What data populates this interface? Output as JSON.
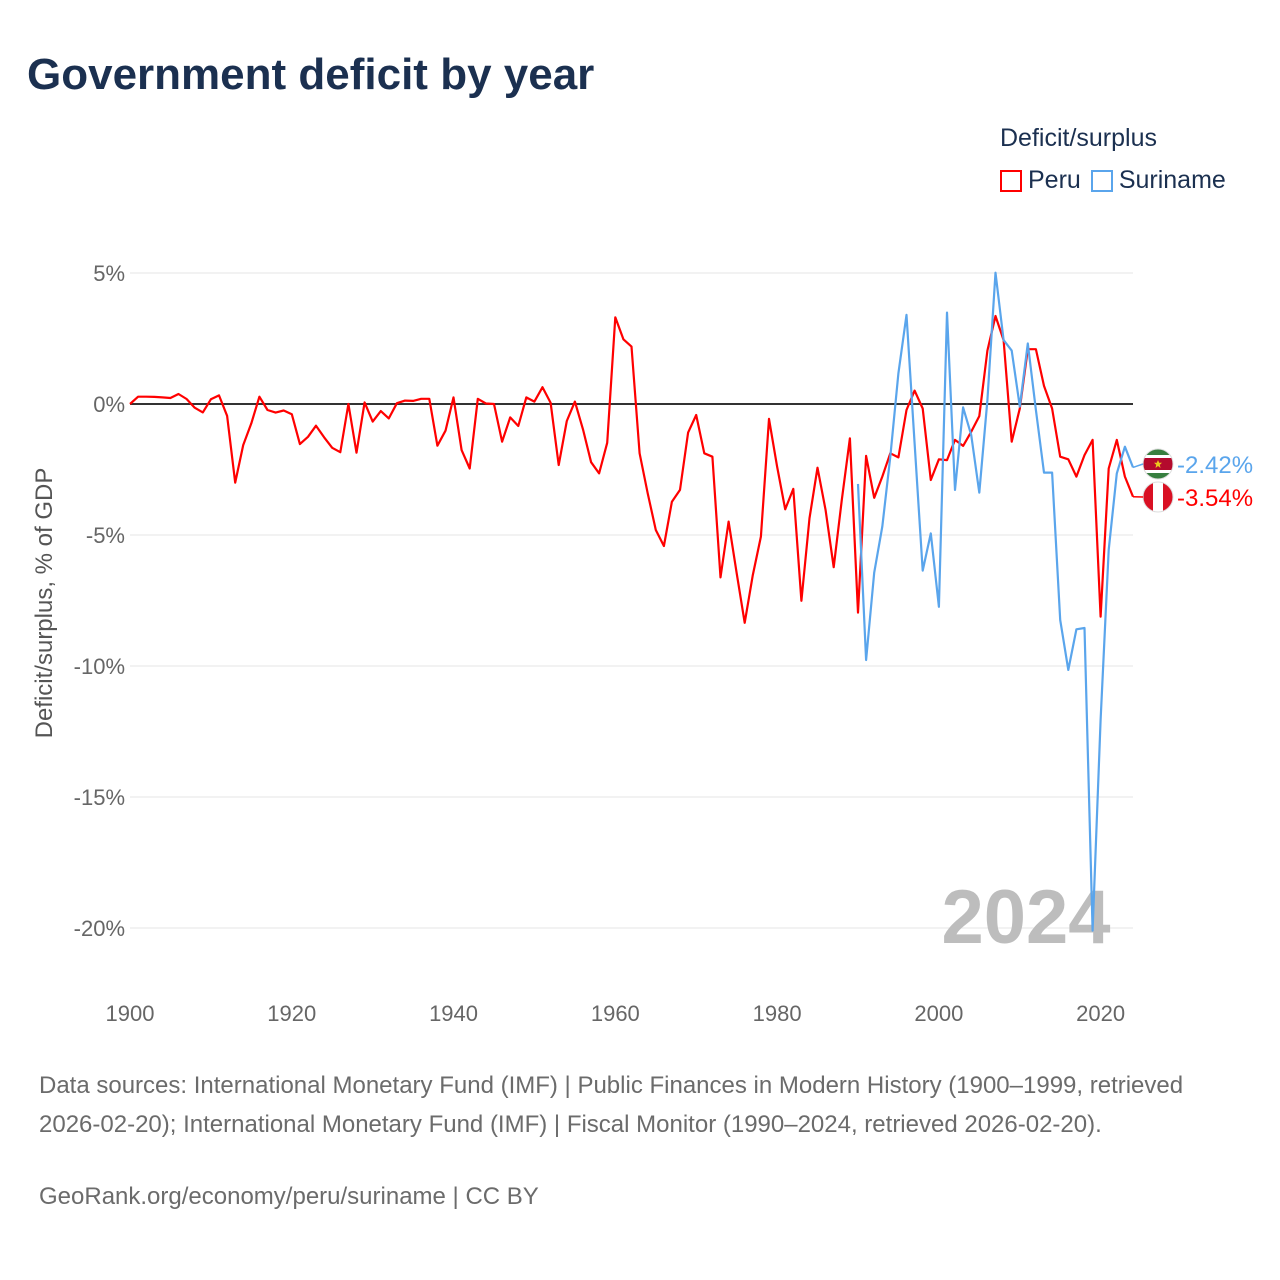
{
  "title": "Government deficit by year",
  "legend": {
    "title": "Deficit/surplus",
    "items": [
      {
        "label": "Peru",
        "color": "#ff0000"
      },
      {
        "label": "Suriname",
        "color": "#5aa5ec"
      }
    ]
  },
  "source": "Data sources: International Monetary Fund (IMF) | Public Finances in Modern History (1900–1999, retrieved 2026-02-20); International Monetary Fund (IMF) | Fiscal Monitor (1990–2024, retrieved 2026-02-20).",
  "credit": "GeoRank.org/economy/peru/suriname | CC BY",
  "chart_data": {
    "type": "line",
    "title": "Government deficit by year",
    "xlabel": "",
    "ylabel": "Deficit/surplus, % of GDP",
    "xlim": [
      1900,
      2024
    ],
    "ylim": [
      -20,
      5
    ],
    "yticks": [
      5,
      0,
      -5,
      -10,
      -15,
      -20
    ],
    "ytick_labels": [
      "5%",
      "0%",
      "-5%",
      "-10%",
      "-15%",
      "-20%"
    ],
    "xticks": [
      1900,
      1920,
      1940,
      1960,
      1980,
      2000,
      2020
    ],
    "xtick_labels": [
      "1900",
      "1920",
      "1940",
      "1960",
      "1980",
      "2000",
      "2020"
    ],
    "year_watermark": "2024",
    "grid": true,
    "legend_position": "top-right",
    "series": [
      {
        "name": "Peru",
        "color": "#ff0000",
        "start_year": 1900,
        "end_label": "-3.54%",
        "values": [
          0,
          0.28,
          0.28,
          0.27,
          0.25,
          0.23,
          0.38,
          0.19,
          -0.14,
          -0.32,
          0.18,
          0.33,
          -0.45,
          -3.0,
          -1.57,
          -0.74,
          0.28,
          -0.23,
          -0.33,
          -0.25,
          -0.39,
          -1.53,
          -1.25,
          -0.83,
          -1.27,
          -1.67,
          -1.84,
          0,
          -1.86,
          0.06,
          -0.67,
          -0.27,
          -0.55,
          0.03,
          0.13,
          0.12,
          0.2,
          0.2,
          -1.59,
          -1.02,
          0.25,
          -1.76,
          -2.46,
          0.2,
          0.02,
          0,
          -1.44,
          -0.51,
          -0.84,
          0.25,
          0.09,
          0.64,
          0.05,
          -2.33,
          -0.65,
          0.09,
          -0.97,
          -2.22,
          -2.65,
          -1.48,
          3.31,
          2.47,
          2.19,
          -1.88,
          -3.41,
          -4.81,
          -5.42,
          -3.73,
          -3.28,
          -1.09,
          -0.42,
          -1.88,
          -2.01,
          -6.62,
          -4.49,
          -6.46,
          -8.35,
          -6.53,
          -5.06,
          -0.57,
          -2.39,
          -4.02,
          -3.24,
          -7.51,
          -4.36,
          -2.43,
          -4.05,
          -6.23,
          -3.66,
          -1.31,
          -7.96,
          -1.98,
          -3.58,
          -2.77,
          -1.88,
          -2.04,
          -0.23,
          0.51,
          -0.17,
          -2.9,
          -2.11,
          -2.14,
          -1.37,
          -1.6,
          -1.06,
          -0.46,
          2.04,
          3.36,
          2.44,
          -1.44,
          -0.17,
          2.09,
          2.09,
          0.69,
          -0.17,
          -2.01,
          -2.11,
          -2.77,
          -1.95,
          -1.37,
          -8.12,
          -2.46,
          -1.37,
          -2.77,
          -3.54
        ]
      },
      {
        "name": "Suriname",
        "color": "#5aa5ec",
        "start_year": 1990,
        "end_label": "-2.42%",
        "values": [
          -3.05,
          -9.77,
          -6.44,
          -4.68,
          -2.01,
          1.17,
          3.4,
          -1.5,
          -6.36,
          -4.94,
          -7.74,
          3.49,
          -3.28,
          -0.13,
          -1.18,
          -3.38,
          0.15,
          5.01,
          2.44,
          2.04,
          -0.1,
          2.31,
          -0.23,
          -2.62,
          -2.62,
          -8.24,
          -10.15,
          -8.6,
          -8.55,
          -20.1,
          -12.06,
          -5.57,
          -2.65,
          -1.63,
          -2.42
        ]
      }
    ]
  }
}
